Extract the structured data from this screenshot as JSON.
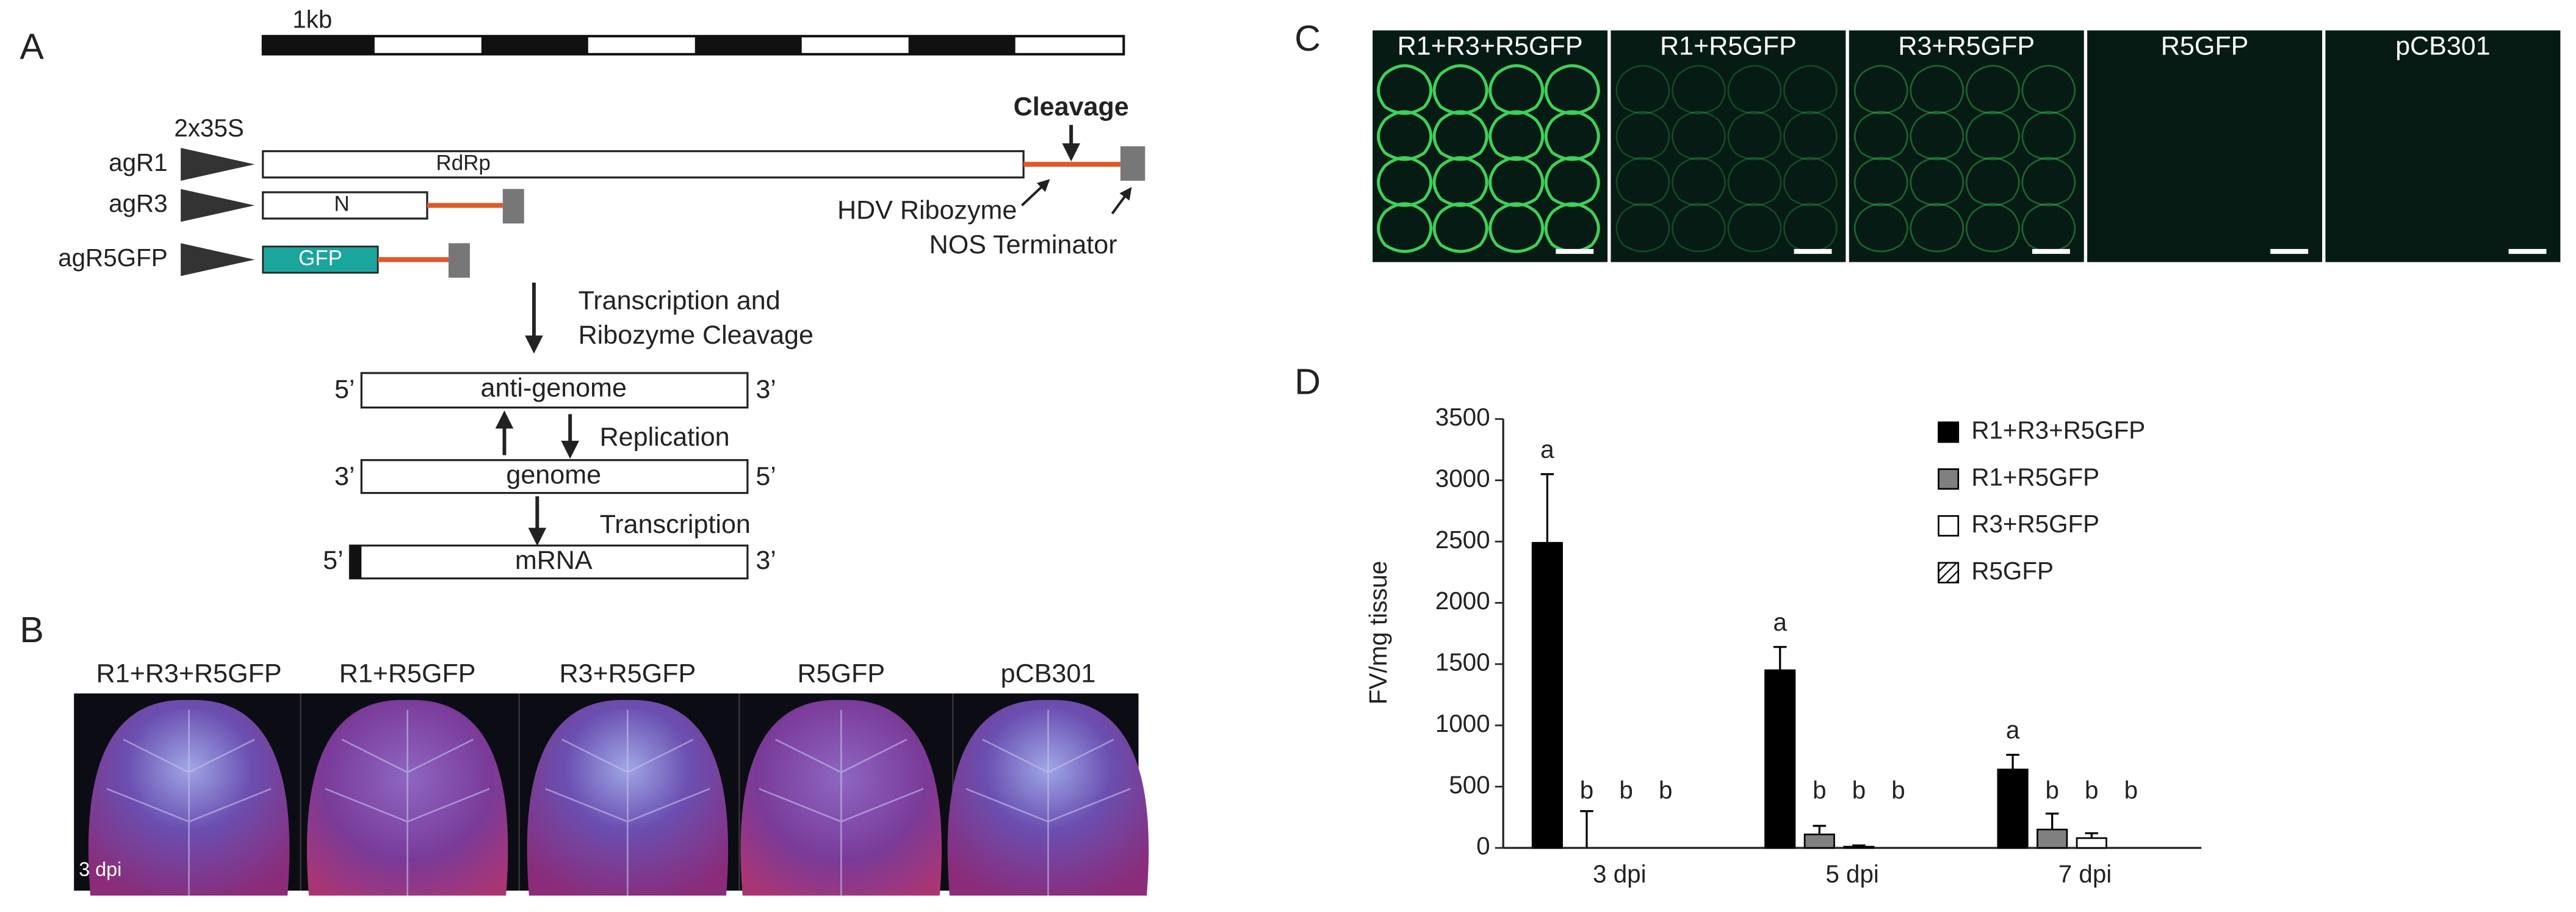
{
  "panels": {
    "A": {
      "label": "A",
      "scale_label": "1kb",
      "promoter": "2x35S",
      "constructs": [
        {
          "name": "agR1",
          "gene": "RdRp"
        },
        {
          "name": "agR3",
          "gene": "N"
        },
        {
          "name": "agR5GFP",
          "gene": "GFP"
        }
      ],
      "cleavage": "Cleavage",
      "ribozyme": "HDV Ribozyme",
      "terminator": "NOS Terminator",
      "step1": [
        "Transcription and",
        "Ribozyme Cleavage"
      ],
      "replication": "Replication",
      "transcription": "Transcription",
      "strands": [
        {
          "left": "5’",
          "label": "anti-genome",
          "right": "3’"
        },
        {
          "left": "3’",
          "label": "genome",
          "right": "5’"
        },
        {
          "left": "5’",
          "label": "mRNA",
          "right": "3’"
        }
      ]
    },
    "B": {
      "label": "B",
      "samples": [
        "R1+R3+R5GFP",
        "R1+R5GFP",
        "R3+R5GFP",
        "R5GFP",
        "pCB301"
      ],
      "timepoint": "3 dpi"
    },
    "C": {
      "label": "C",
      "samples": [
        "R1+R3+R5GFP",
        "R1+R5GFP",
        "R3+R5GFP",
        "R5GFP",
        "pCB301"
      ]
    },
    "D": {
      "label": "D"
    }
  },
  "chart_data": {
    "type": "bar",
    "y_label": "FV/mg tissue",
    "categories": [
      "3 dpi",
      "5 dpi",
      "7 dpi"
    ],
    "series": [
      {
        "name": "R1+R3+R5GFP",
        "color": "#000000",
        "values": [
          2490,
          1450,
          640
        ],
        "errors": [
          560,
          190,
          120
        ],
        "significance": [
          "a",
          "a",
          "a"
        ]
      },
      {
        "name": "R1+R5GFP",
        "color": "#808080",
        "values": [
          0,
          110,
          150
        ],
        "errors": [
          300,
          70,
          130
        ],
        "significance": [
          "b",
          "b",
          "b"
        ]
      },
      {
        "name": "R3+R5GFP",
        "color": "#ffffff",
        "values": [
          0,
          10,
          80
        ],
        "errors": [
          0,
          10,
          40
        ],
        "significance": [
          "b",
          "b",
          "b"
        ]
      },
      {
        "name": "R5GFP",
        "color": "#ffffff",
        "hatch": true,
        "values": [
          0,
          0,
          0
        ],
        "errors": [
          0,
          0,
          0
        ],
        "significance": [
          "b",
          "b",
          "b"
        ]
      }
    ],
    "ylim": [
      0,
      3500
    ],
    "yticks": [
      0,
      500,
      1000,
      1500,
      2000,
      2500,
      3000,
      3500
    ],
    "legend": "upper right"
  }
}
